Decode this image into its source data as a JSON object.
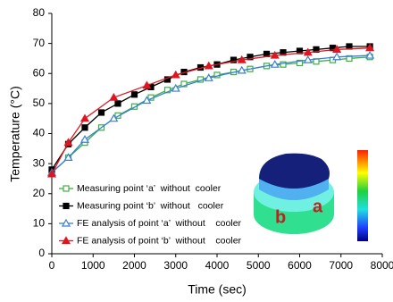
{
  "chart_data": {
    "type": "line",
    "xlabel": "Time (sec)",
    "ylabel": "Temperature (°C)",
    "xlim": [
      0,
      8000
    ],
    "xticks": [
      0,
      1000,
      2000,
      3000,
      4000,
      5000,
      6000,
      7000,
      8000
    ],
    "ylim": [
      0,
      80
    ],
    "yticks": [
      0,
      10,
      20,
      30,
      40,
      50,
      60,
      70,
      80
    ],
    "grid": false,
    "legend": "lower left",
    "series": [
      {
        "name": "Measuring point ‘a’  without  cooler",
        "color": "#3cb043",
        "marker": "square-open",
        "x": [
          0,
          400,
          800,
          1200,
          1600,
          2000,
          2400,
          2800,
          3200,
          3600,
          4000,
          4400,
          4800,
          5200,
          5600,
          6000,
          6400,
          6800,
          7200,
          7700
        ],
        "values": [
          27,
          32,
          37,
          42,
          46,
          49,
          52,
          54.5,
          56.5,
          58,
          59.5,
          60.5,
          61.5,
          62.5,
          63,
          63.5,
          64,
          64.5,
          65,
          65.5
        ]
      },
      {
        "name": "Measuring point ‘b’  without   cooler",
        "color": "#000000",
        "marker": "square",
        "x": [
          0,
          400,
          800,
          1200,
          1600,
          2000,
          2400,
          2800,
          3200,
          3600,
          4000,
          4400,
          4800,
          5200,
          5600,
          6000,
          6400,
          6800,
          7200,
          7700
        ],
        "values": [
          28,
          36.5,
          42,
          47,
          50,
          53,
          55.5,
          58,
          60.5,
          62,
          63,
          64.5,
          65.5,
          66.5,
          67,
          67.5,
          68,
          68.5,
          69,
          69
        ]
      },
      {
        "name": "FE analysis of point ‘a’  without    cooler",
        "color": "#3a7fd5",
        "marker": "triangle-open",
        "x": [
          0,
          400,
          800,
          1500,
          2300,
          3000,
          3800,
          4600,
          5400,
          6200,
          6900,
          7700
        ],
        "values": [
          27,
          32,
          38,
          45,
          51,
          55,
          58.5,
          61,
          63,
          64.5,
          65.5,
          66
        ]
      },
      {
        "name": "FE analysis of point ‘b’  without    cooler",
        "color": "#e0151f",
        "marker": "triangle",
        "x": [
          0,
          400,
          800,
          1500,
          2300,
          3000,
          3800,
          4600,
          5400,
          6200,
          6900,
          7700
        ],
        "values": [
          26.5,
          37,
          45,
          52,
          56,
          59.5,
          62.5,
          64.5,
          66,
          67,
          68,
          68.5
        ]
      }
    ]
  },
  "inset": {
    "labels": [
      "b",
      "a"
    ]
  }
}
